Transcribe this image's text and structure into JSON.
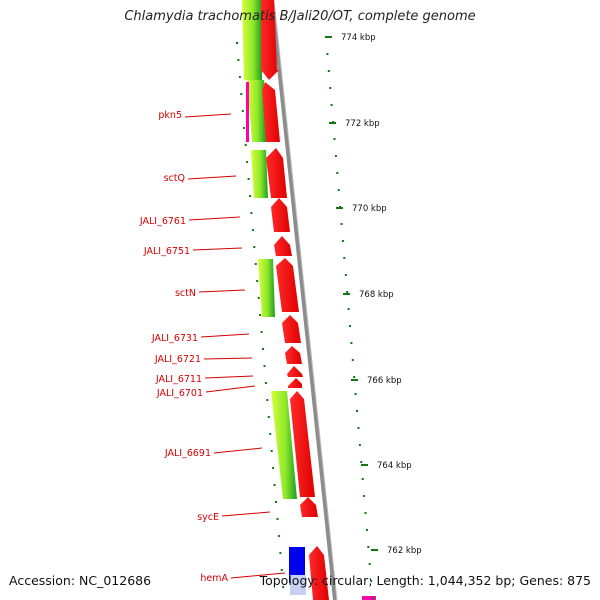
{
  "title": "Chlamydia trachomatis B/Jali20/OT, complete genome",
  "accession": "Accession: NC_012686",
  "stats": "Topology: circular; Length: 1,044,352 bp; Genes: 875",
  "colors": {
    "label": "#d40000",
    "forward_gene": "#ff0000",
    "reverse_gene_light": "#ccff33",
    "reverse_gene_dark": "#22cc22",
    "tick": "#117711",
    "backbone": "#888888",
    "special_gene": "#0000ee",
    "accent_magenta": "#ff00aa"
  },
  "kbp_ticks": [
    "774 kbp",
    "772 kbp",
    "770 kbp",
    "768 kbp",
    "766 kbp",
    "764 kbp",
    "762 kbp"
  ],
  "genes": [
    "pkn5",
    "sctQ",
    "JALI_6761",
    "JALI_6751",
    "sctN",
    "JALI_6731",
    "JALI_6721",
    "JALI_6711",
    "JALI_6701",
    "JALI_6691",
    "sycE",
    "hemA"
  ]
}
